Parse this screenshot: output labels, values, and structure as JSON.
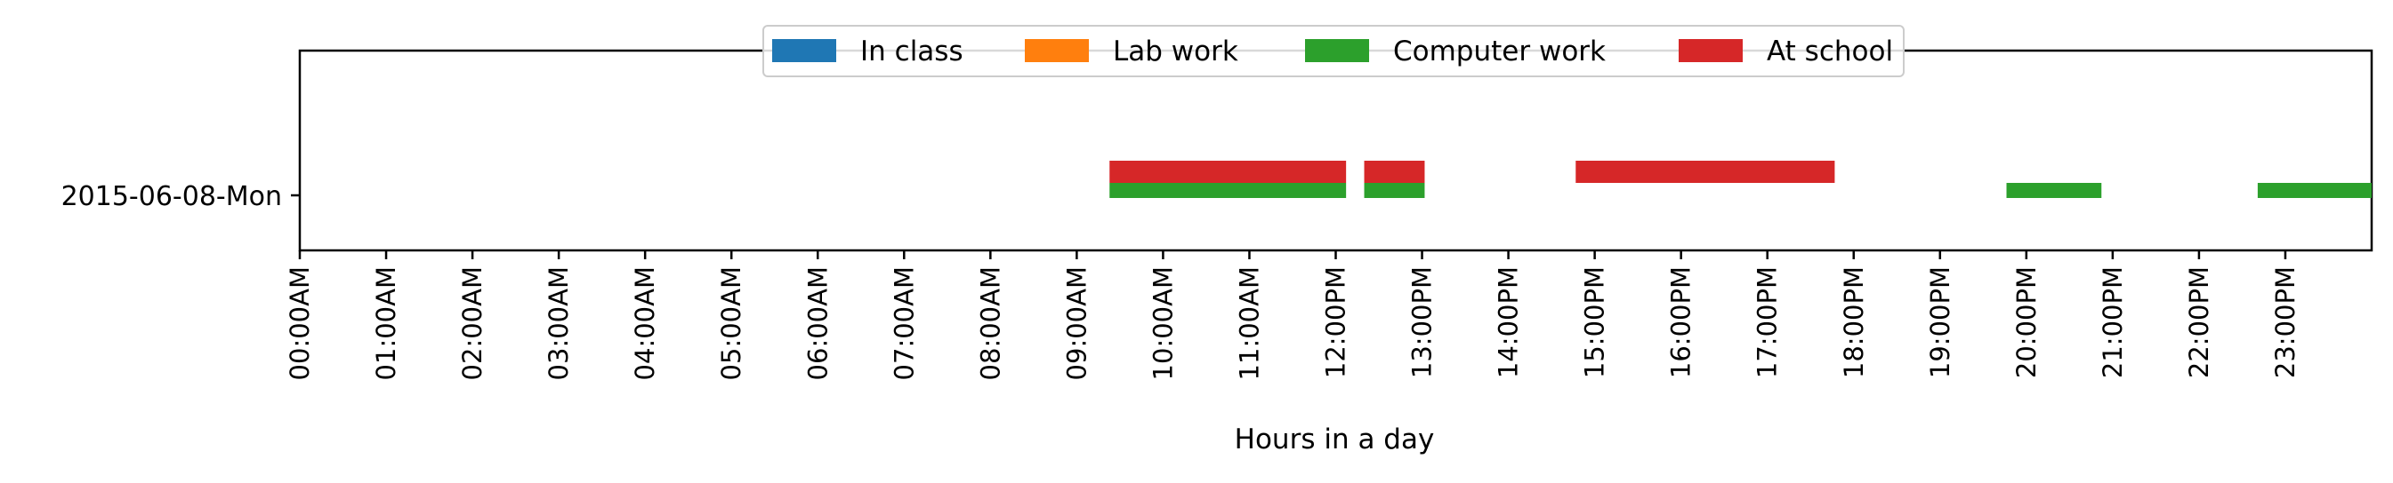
{
  "chart_data": {
    "type": "timeline",
    "title": "",
    "xlabel": "Hours in a day",
    "ylabel": "",
    "xlim": [
      0,
      24
    ],
    "x_ticks": [
      "00:00AM",
      "01:00AM",
      "02:00AM",
      "03:00AM",
      "04:00AM",
      "05:00AM",
      "06:00AM",
      "07:00AM",
      "08:00AM",
      "09:00AM",
      "10:00AM",
      "11:00AM",
      "12:00PM",
      "13:00PM",
      "14:00PM",
      "15:00PM",
      "16:00PM",
      "17:00PM",
      "18:00PM",
      "19:00PM",
      "20:00PM",
      "21:00PM",
      "22:00PM",
      "23:00PM"
    ],
    "days": [
      "2015-06-08-Mon"
    ],
    "legend_position": "top-center",
    "grid": false,
    "series": [
      {
        "name": "In class",
        "color": "#1f77b4",
        "intervals": []
      },
      {
        "name": "Lab work",
        "color": "#ff7f0e",
        "intervals": []
      },
      {
        "name": "Computer work",
        "color": "#2ca02c",
        "intervals": [
          {
            "day": "2015-06-08-Mon",
            "start": 9.38,
            "end": 12.12
          },
          {
            "day": "2015-06-08-Mon",
            "start": 12.33,
            "end": 13.03
          },
          {
            "day": "2015-06-08-Mon",
            "start": 19.77,
            "end": 20.87
          },
          {
            "day": "2015-06-08-Mon",
            "start": 22.68,
            "end": 24.0
          }
        ]
      },
      {
        "name": "At school",
        "color": "#d62728",
        "intervals": [
          {
            "day": "2015-06-08-Mon",
            "start": 9.38,
            "end": 12.12
          },
          {
            "day": "2015-06-08-Mon",
            "start": 12.33,
            "end": 13.03
          },
          {
            "day": "2015-06-08-Mon",
            "start": 14.78,
            "end": 17.78
          }
        ]
      }
    ]
  }
}
